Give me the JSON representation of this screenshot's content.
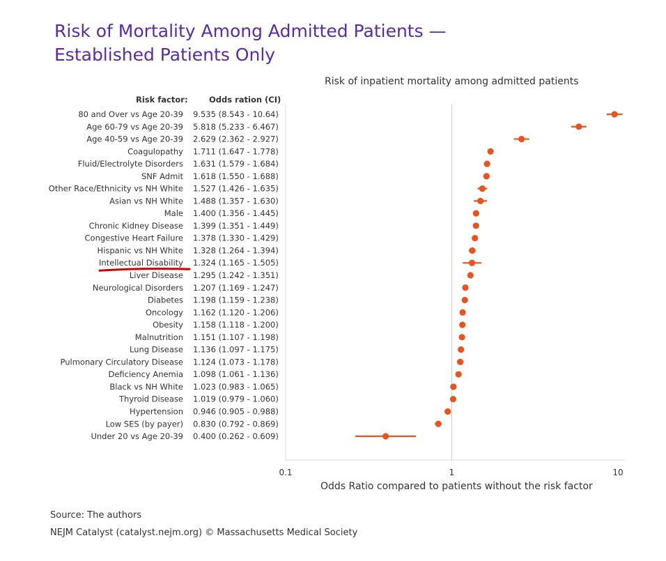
{
  "header": {
    "title_line1": "Risk of Mortality Among Admitted Patients —",
    "title_line2": "Established Patients Only"
  },
  "footer": {
    "source": "Source: The authors",
    "credit": "NEJM Catalyst (catalyst.nejm.org) © Massachusetts Medical Society"
  },
  "colors": {
    "marker": "#e8541e",
    "title": "#5a2aa8",
    "highlight_underline": "#cc0000",
    "reference_line": "#cccccc"
  },
  "annotations": {
    "underlined_row": "Intellectual Disability"
  },
  "chart_data": {
    "type": "forest",
    "title": "Risk of inpatient mortality among admitted patients",
    "xlabel": "Odds Ratio compared to patients without the risk factor",
    "xscale": "log",
    "xlim": [
      0.1,
      10
    ],
    "xticks": [
      "0.1",
      "1",
      "10"
    ],
    "reference_line": 1,
    "column_headers": [
      "Risk factor:",
      "Odds ration (CI)"
    ],
    "rows": [
      {
        "label": "80 and Over vs Age 20-39",
        "ci_text": "9.535 (8.543 - 10.64)",
        "or": 9.535,
        "lo": 8.543,
        "hi": 10.64
      },
      {
        "label": "Age 60-79 vs Age 20-39",
        "ci_text": "5.818 (5.233 - 6.467)",
        "or": 5.818,
        "lo": 5.233,
        "hi": 6.467
      },
      {
        "label": "Age 40-59 vs Age 20-39",
        "ci_text": "2.629 (2.362 - 2.927)",
        "or": 2.629,
        "lo": 2.362,
        "hi": 2.927
      },
      {
        "label": "Coagulopathy",
        "ci_text": "1.711 (1.647 - 1.778)",
        "or": 1.711,
        "lo": 1.647,
        "hi": 1.778
      },
      {
        "label": "Fluid/Electrolyte Disorders",
        "ci_text": "1.631 (1.579 - 1.684)",
        "or": 1.631,
        "lo": 1.579,
        "hi": 1.684
      },
      {
        "label": "SNF Admit",
        "ci_text": "1.618 (1.550 - 1.688)",
        "or": 1.618,
        "lo": 1.55,
        "hi": 1.688
      },
      {
        "label": "Other Race/Ethnicity vs NH White",
        "ci_text": "1.527 (1.426 - 1.635)",
        "or": 1.527,
        "lo": 1.426,
        "hi": 1.635
      },
      {
        "label": "Asian vs NH White",
        "ci_text": "1.488 (1.357 - 1.630)",
        "or": 1.488,
        "lo": 1.357,
        "hi": 1.63
      },
      {
        "label": "Male",
        "ci_text": "1.400 (1.356 - 1.445)",
        "or": 1.4,
        "lo": 1.356,
        "hi": 1.445
      },
      {
        "label": "Chronic Kidney Disease",
        "ci_text": "1.399 (1.351 - 1.449)",
        "or": 1.399,
        "lo": 1.351,
        "hi": 1.449
      },
      {
        "label": "Congestive Heart Failure",
        "ci_text": "1.378 (1.330 - 1.429)",
        "or": 1.378,
        "lo": 1.33,
        "hi": 1.429
      },
      {
        "label": "Hispanic vs NH White",
        "ci_text": "1.328 (1.264 - 1.394)",
        "or": 1.328,
        "lo": 1.264,
        "hi": 1.394
      },
      {
        "label": "Intellectual Disability",
        "ci_text": "1.324 (1.165 - 1.505)",
        "or": 1.324,
        "lo": 1.165,
        "hi": 1.505
      },
      {
        "label": "Liver Disease",
        "ci_text": "1.295 (1.242 - 1.351)",
        "or": 1.295,
        "lo": 1.242,
        "hi": 1.351
      },
      {
        "label": "Neurological Disorders",
        "ci_text": "1.207 (1.169 - 1.247)",
        "or": 1.207,
        "lo": 1.169,
        "hi": 1.247
      },
      {
        "label": "Diabetes",
        "ci_text": "1.198 (1.159 - 1.238)",
        "or": 1.198,
        "lo": 1.159,
        "hi": 1.238
      },
      {
        "label": "Oncology",
        "ci_text": "1.162 (1.120 - 1.206)",
        "or": 1.162,
        "lo": 1.12,
        "hi": 1.206
      },
      {
        "label": "Obesity",
        "ci_text": "1.158 (1.118 - 1.200)",
        "or": 1.158,
        "lo": 1.118,
        "hi": 1.2
      },
      {
        "label": "Malnutrition",
        "ci_text": "1.151 (1.107 - 1.198)",
        "or": 1.151,
        "lo": 1.107,
        "hi": 1.198
      },
      {
        "label": "Lung Disease",
        "ci_text": "1.136 (1.097 - 1.175)",
        "or": 1.136,
        "lo": 1.097,
        "hi": 1.175
      },
      {
        "label": "Pulmonary Circulatory Disease",
        "ci_text": "1.124 (1.073 - 1.178)",
        "or": 1.124,
        "lo": 1.073,
        "hi": 1.178
      },
      {
        "label": "Deficiency Anemia",
        "ci_text": "1.098 (1.061 - 1.136)",
        "or": 1.098,
        "lo": 1.061,
        "hi": 1.136
      },
      {
        "label": "Black vs NH White",
        "ci_text": "1.023 (0.983 - 1.065)",
        "or": 1.023,
        "lo": 0.983,
        "hi": 1.065
      },
      {
        "label": "Thyroid Disease",
        "ci_text": "1.019 (0.979 - 1.060)",
        "or": 1.019,
        "lo": 0.979,
        "hi": 1.06
      },
      {
        "label": "Hypertension",
        "ci_text": "0.946 (0.905 - 0.988)",
        "or": 0.946,
        "lo": 0.905,
        "hi": 0.988
      },
      {
        "label": "Low SES (by payer)",
        "ci_text": "0.830 (0.792 - 0.869)",
        "or": 0.83,
        "lo": 0.792,
        "hi": 0.869
      },
      {
        "label": "Under 20 vs Age 20-39",
        "ci_text": "0.400 (0.262 - 0.609)",
        "or": 0.4,
        "lo": 0.262,
        "hi": 0.609
      }
    ]
  }
}
